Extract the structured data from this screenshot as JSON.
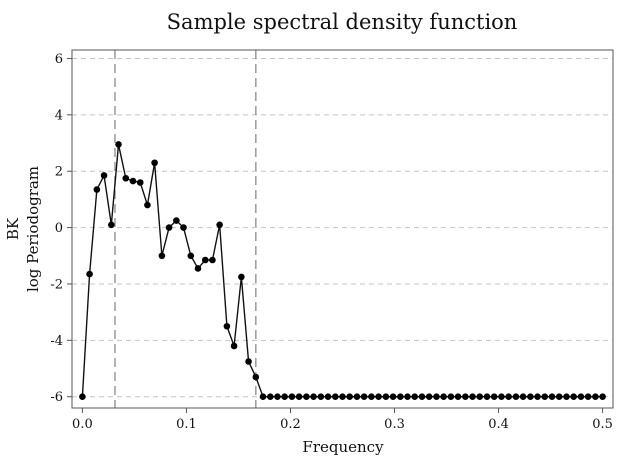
{
  "chart_data": {
    "type": "line",
    "title": "Sample spectral density function",
    "xlabel": "Frequency",
    "ylabel_lines": [
      "BK",
      "log Periodogram"
    ],
    "xlim": [
      -0.01,
      0.51
    ],
    "ylim": [
      -6.4,
      6.3
    ],
    "x_ticks": [
      0.0,
      0.1,
      0.2,
      0.3,
      0.4,
      0.5
    ],
    "x_tick_labels": [
      "0.0",
      "0.1",
      "0.2",
      "0.3",
      "0.4",
      "0.5"
    ],
    "y_ticks": [
      -6,
      -4,
      -2,
      0,
      2,
      4,
      6
    ],
    "y_tick_labels": [
      "-6",
      "-4",
      "-2",
      "0",
      "2",
      "4",
      "6"
    ],
    "grid": "horizontal dashed",
    "reference_lines_x": [
      0.0313,
      0.1667
    ],
    "series": [
      {
        "name": "log Periodogram",
        "x": [
          0.0,
          0.0069,
          0.0139,
          0.0208,
          0.0278,
          0.0347,
          0.0417,
          0.0486,
          0.0556,
          0.0625,
          0.0694,
          0.0764,
          0.0833,
          0.0903,
          0.0972,
          0.1042,
          0.1111,
          0.1181,
          0.125,
          0.1319,
          0.1389,
          0.1458,
          0.1528,
          0.1597,
          0.1667,
          0.1736,
          0.1806,
          0.1875,
          0.1944,
          0.2014,
          0.2083,
          0.2153,
          0.2222,
          0.2292,
          0.2361,
          0.2431,
          0.25,
          0.2569,
          0.2639,
          0.2708,
          0.2778,
          0.2847,
          0.2917,
          0.2986,
          0.3056,
          0.3125,
          0.3194,
          0.3264,
          0.3333,
          0.3403,
          0.3472,
          0.3542,
          0.3611,
          0.3681,
          0.375,
          0.3819,
          0.3889,
          0.3958,
          0.4028,
          0.4097,
          0.4167,
          0.4236,
          0.4306,
          0.4375,
          0.4444,
          0.4514,
          0.4583,
          0.4653,
          0.4722,
          0.4792,
          0.4861,
          0.4931,
          0.5
        ],
        "values": [
          -6.0,
          -1.65,
          1.35,
          1.85,
          0.1,
          2.95,
          1.75,
          1.65,
          1.6,
          0.8,
          2.3,
          -1.0,
          0.0,
          0.25,
          0.0,
          -1.0,
          -1.45,
          -1.15,
          -1.15,
          0.1,
          -3.5,
          -4.2,
          -1.75,
          -4.75,
          -5.3,
          -6.0,
          -6.0,
          -6.0,
          -6.0,
          -6.0,
          -6.0,
          -6.0,
          -6.0,
          -6.0,
          -6.0,
          -6.0,
          -6.0,
          -6.0,
          -6.0,
          -6.0,
          -6.0,
          -6.0,
          -6.0,
          -6.0,
          -6.0,
          -6.0,
          -6.0,
          -6.0,
          -6.0,
          -6.0,
          -6.0,
          -6.0,
          -6.0,
          -6.0,
          -6.0,
          -6.0,
          -6.0,
          -6.0,
          -6.0,
          -6.0,
          -6.0,
          -6.0,
          -6.0,
          -6.0,
          -6.0,
          -6.0,
          -6.0,
          -6.0,
          -6.0,
          -6.0,
          -6.0,
          -6.0,
          -6.0
        ]
      }
    ]
  }
}
